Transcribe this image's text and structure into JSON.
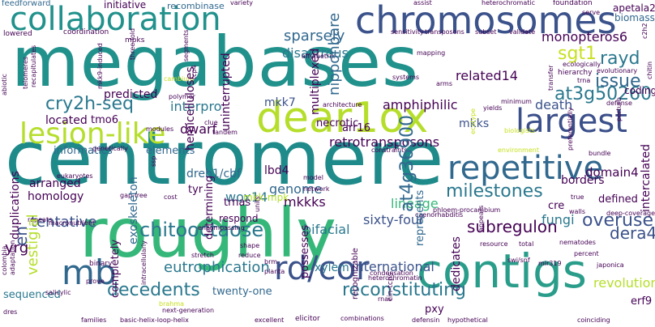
{
  "cloud": {
    "palette": {
      "dark_purple": "#440154",
      "indigo": "#3b528b",
      "blue": "#31688e",
      "teal": "#21918c",
      "cyan": "#1f9e89",
      "green": "#35b779",
      "lime": "#6ece58",
      "yellow_green": "#b5de2b",
      "yellow": "#fde725"
    },
    "words": {
      "megabases": "megabases",
      "centromere": "centromere",
      "roughly": "roughly",
      "chromosomes": "chromosomes",
      "collaboration": "collaboration",
      "dear1ox": "dear1ox",
      "contigs": "contigs",
      "lesion_like": "lesion-like",
      "repetitive": "repetitive",
      "largest": "largest",
      "rd_cor": "rd/cor",
      "mb": "mb",
      "chitooctaose": "chitooctaose",
      "reconstituting": "reconstituting",
      "decedents": "decedents",
      "at3g50260": "at3g50260",
      "cry2h_seq": "cry2h-seq",
      "milestones": "milestones",
      "sgt1": "sgt1",
      "rayd": "rayd",
      "issue": "issue",
      "overuse": "overuse",
      "subregulon": "subregulon",
      "dera4": "dera4",
      "eutrophication": "eutrophication",
      "tentative": "tentative",
      "sparsely": "sparsely",
      "disastrous": "disastrous",
      "monopteros6": "monopteros6",
      "related14": "related14",
      "amphiphilic": "amphiphilic",
      "interpro": "interpro",
      "mkk7": "mkk7",
      "mkks": "mkks",
      "death": "death",
      "retrotransposons": "retrotransposons",
      "dreb1_cbf": "dreb1/cbf",
      "lbd4": "lbd4",
      "at4g36900": "at4g36900",
      "genome": "genome",
      "mkkks": "mkkks",
      "wox14": "wox14",
      "bifacial": "bifacial",
      "sixty_four": "sixty-four",
      "fungi": "fungi",
      "lineage": "lineage",
      "borders": "borders",
      "domain4": "domain4",
      "defined": "defined",
      "xylem": "xylem",
      "international": "international",
      "revolution": "revolution",
      "erf9": "erf9",
      "pxy": "pxy",
      "twenty_one": "twenty-one",
      "sequenced": "sequenced",
      "yrg": "yrg",
      "duplications": "duplications",
      "homology": "homology",
      "arranged": "arranged",
      "exoskeleton": "exoskeleton",
      "vestigial": "vestigial",
      "predicted": "predicted",
      "located": "located",
      "tmo6": "tmo6",
      "informatics": "informatics",
      "elements": "elements",
      "dwarf": "dwarf",
      "nipponbare": "nipponbare",
      "multiplexed": "multiplexed",
      "uninterrupted": "uninterrupted",
      "hemicelluloses": "hemicelluloses",
      "en": "en",
      "apetala2": "apetala2",
      "biomass": "biomass",
      "coding": "coding",
      "intercalated": "intercalated",
      "feedforward": "feedforward",
      "initiative": "initiative",
      "recombinase": "recombinase",
      "lowered": "lowered",
      "coordination": "coordination",
      "affymetrix": "affymetrix",
      "mapping": "mapping",
      "systems": "systems",
      "arms": "arms",
      "yields": "yields",
      "defense": "defense",
      "trna": "trna",
      "hierarchy": "hierarchy",
      "ecologically": "ecologically",
      "subset": "subset",
      "validate": "validate",
      "sensitivity": "sensitivity",
      "transposons": "transposons",
      "variety": "variety",
      "assist": "assist",
      "heterochromatic": "heterochromatic",
      "foundation": "foundation",
      "serve": "serve",
      "mpks": "mpks",
      "polymer": "polymer",
      "cambium": "cambium",
      "tcp4": "tcp4",
      "architecture": "architecture",
      "necrotic": "necrotic",
      "arr16": "arr16",
      "tandem": "tandem",
      "clue": "clue",
      "modules": "modules",
      "genetically": "genetically",
      "constraints": "constraints",
      "biologists": "biologists",
      "environment": "environment",
      "bundle": "bundle",
      "tyr": "tyr",
      "mkk_mpk": "mkk-mpk",
      "trnas": "trnas",
      "respond": "respond",
      "determining": "determining",
      "cost": "cost",
      "eukaryotes": "eukaryotes",
      "gap_free": "gap-free",
      "units": "units",
      "model": "model",
      "network": "network",
      "cre": "cre",
      "true": "true",
      "walls": "walls",
      "represents": "represents",
      "appears": "appears",
      "phloem_procambium": "phloem-procambium",
      "deep_coverage": "deep-coverage",
      "repeats": "repeats",
      "macronutrient": "macronutrient",
      "encompassing": "encompassing",
      "caenorhabditis": "caenorhabditis",
      "recognizable": "recognizable",
      "shape": "shape",
      "reduce": "reduce",
      "possesses": "possesses",
      "dedicates": "dedicates",
      "resource": "resource",
      "total": "total",
      "nematodes": "nematodes",
      "percent": "percent",
      "japonica": "japonica",
      "swi_snf": "swi/snf",
      "mir319": "mir319",
      "completely": "completely",
      "binary": "binary",
      "intracellularly": "intracellularly",
      "stretch": "stretch",
      "brm": "brm",
      "planta": "planta",
      "cin_tcps": "cin-tcps",
      "condensation": "condensation",
      "heterochromatin": "heterochromatin",
      "rnas": "rnas",
      "salicylic": "salicylic",
      "prove": "prove",
      "dres": "dres",
      "brahma": "brahma",
      "next_generation": "next-generation",
      "families": "families",
      "basic_helix_loop_helix": "basic-helix-loop-helix",
      "excellent": "excellent",
      "elicitor": "elicitor",
      "combinations": "combinations",
      "defensin": "defensin",
      "hypothetical": "hypothetical",
      "coinciding": "coinciding",
      "abiotic": "abiotic",
      "colombia": "colombia",
      "adaptation": "adaptation",
      "telomeres": "telomeres",
      "recapitulates": "recapitulates",
      "mkk9_induced": "mkk9-induced",
      "three_fold": "three-fold",
      "segments": "segments",
      "ssp": "ssp",
      "minimum": "minimum",
      "ecotype": "ecotype",
      "evolutionary": "evolutionary",
      "perturb": "perturb",
      "preferentially": "preferentially",
      "c2h2": "c2h2",
      "transfer": "transfer",
      "chitin": "chitin"
    }
  }
}
